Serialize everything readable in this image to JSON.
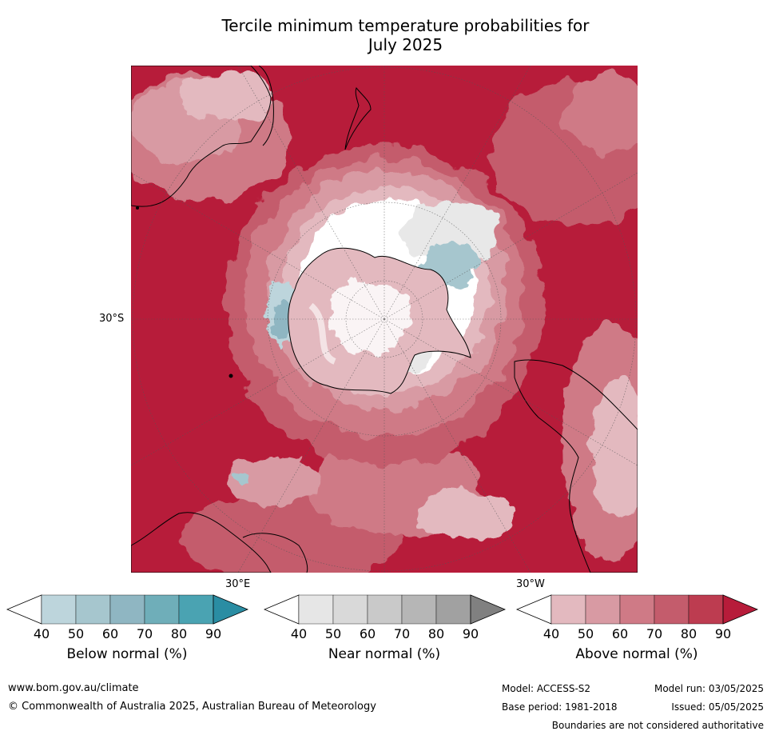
{
  "title": {
    "line1": "Tercile minimum temperature probabilities for",
    "line2": "July 2025"
  },
  "map": {
    "projection": "south-polar-stereographic",
    "lat_label": "30°S",
    "lon_labels": {
      "east": "30°E",
      "west": "30°W"
    },
    "ocean_fill": "#b71c3a",
    "colors": {
      "above_40": "#e3b9bf",
      "above_50": "#d89aa3",
      "above_60": "#cf7a86",
      "above_70": "#c45c6c",
      "above_80": "#bd3c50",
      "above_90": "#b71c3a",
      "near_40": "#e8e8e8",
      "near_50": "#dadada",
      "below_40": "#bdd5dc",
      "below_50": "#a6c6ce",
      "below_60": "#8fb6c2"
    }
  },
  "colorbars": [
    {
      "label": "Below normal (%)",
      "ticks": [
        "40",
        "50",
        "60",
        "70",
        "80",
        "90"
      ],
      "colors": [
        "#ffffff",
        "#bdd5dc",
        "#a6c6ce",
        "#8fb6c2",
        "#6faeb9",
        "#4aa3b2",
        "#2a8da3"
      ]
    },
    {
      "label": "Near normal (%)",
      "ticks": [
        "40",
        "50",
        "60",
        "70",
        "80",
        "90"
      ],
      "colors": [
        "#ffffff",
        "#e6e6e6",
        "#d9d9d9",
        "#c9c9c9",
        "#b6b6b6",
        "#a1a1a1",
        "#808080"
      ]
    },
    {
      "label": "Above normal (%)",
      "ticks": [
        "40",
        "50",
        "60",
        "70",
        "80",
        "90"
      ],
      "colors": [
        "#ffffff",
        "#e3b9bf",
        "#d89aa3",
        "#cf7a86",
        "#c45c6c",
        "#bd3c50",
        "#b71c3a"
      ]
    }
  ],
  "footer": {
    "website": "www.bom.gov.au/climate",
    "copyright": "© Commonwealth of Australia 2025, Australian Bureau of Meteorology",
    "model": "Model: ACCESS-S2",
    "model_run": "Model run: 03/05/2025",
    "base_period": "Base period: 1981-2018",
    "issued": "Issued: 05/05/2025",
    "disclaimer": "Boundaries are not considered authoritative"
  }
}
